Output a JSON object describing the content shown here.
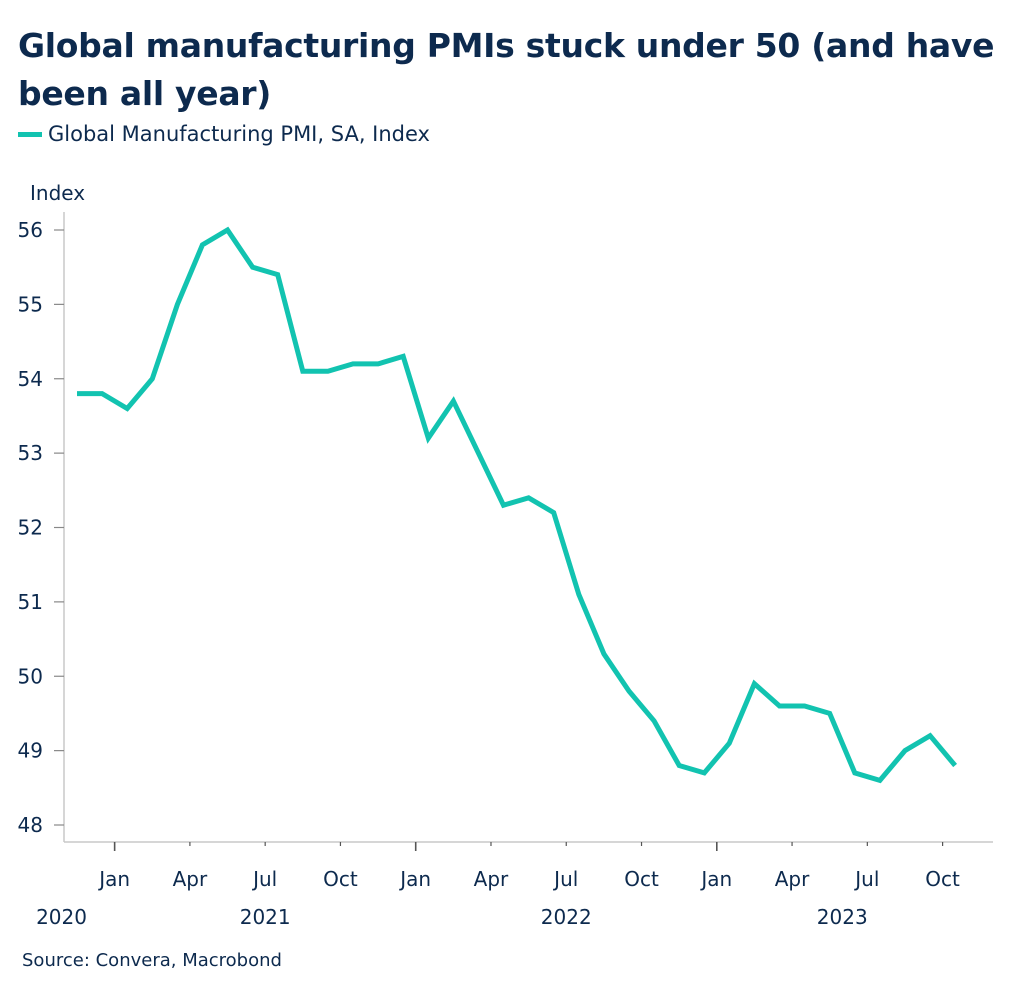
{
  "title": "Global manufacturing PMIs stuck under 50 (and have been all year)",
  "source": "Source: Convera, Macrobond",
  "colors": {
    "series": "#12c3b0",
    "text": "#0d2a4e",
    "axis": "#c8c8c8"
  },
  "chart_data": {
    "type": "line",
    "title": "Global manufacturing PMIs stuck under 50 (and have been all year)",
    "xlabel": "",
    "ylabel": "Index",
    "ylim": [
      48,
      56
    ],
    "yticks": [
      48,
      49,
      50,
      51,
      52,
      53,
      54,
      55,
      56
    ],
    "grid": false,
    "legend_position": "top-left",
    "x": [
      "2020-11",
      "2020-12",
      "2021-01",
      "2021-02",
      "2021-03",
      "2021-04",
      "2021-05",
      "2021-06",
      "2021-07",
      "2021-08",
      "2021-09",
      "2021-10",
      "2021-11",
      "2021-12",
      "2022-01",
      "2022-02",
      "2022-03",
      "2022-04",
      "2022-05",
      "2022-06",
      "2022-07",
      "2022-08",
      "2022-09",
      "2022-10",
      "2022-11",
      "2022-12",
      "2023-01",
      "2023-02",
      "2023-03",
      "2023-04",
      "2023-05",
      "2023-06",
      "2023-07",
      "2023-08",
      "2023-09",
      "2023-10"
    ],
    "series": [
      {
        "name": "Global Manufacturing PMI, SA, Index",
        "values": [
          53.8,
          53.8,
          53.6,
          54.0,
          55.0,
          55.8,
          56.0,
          55.5,
          55.4,
          54.1,
          54.1,
          54.2,
          54.2,
          54.3,
          53.2,
          53.7,
          53.0,
          52.3,
          52.4,
          52.2,
          51.1,
          50.3,
          49.8,
          49.4,
          48.8,
          48.7,
          49.1,
          49.9,
          49.6,
          49.6,
          49.5,
          48.7,
          48.6,
          49.0,
          49.2,
          48.8
        ]
      }
    ],
    "month_ticks": [
      {
        "label": "Jan",
        "date": "2021-01",
        "major": true
      },
      {
        "label": "Apr",
        "date": "2021-04",
        "major": false
      },
      {
        "label": "Jul",
        "date": "2021-07",
        "major": false
      },
      {
        "label": "Oct",
        "date": "2021-10",
        "major": false
      },
      {
        "label": "Jan",
        "date": "2022-01",
        "major": true
      },
      {
        "label": "Apr",
        "date": "2022-04",
        "major": false
      },
      {
        "label": "Jul",
        "date": "2022-07",
        "major": false
      },
      {
        "label": "Oct",
        "date": "2022-10",
        "major": false
      },
      {
        "label": "Jan",
        "date": "2023-01",
        "major": true
      },
      {
        "label": "Apr",
        "date": "2023-04",
        "major": false
      },
      {
        "label": "Jul",
        "date": "2023-07",
        "major": false
      },
      {
        "label": "Oct",
        "date": "2023-10",
        "major": false
      }
    ],
    "year_labels": [
      {
        "label": "2020",
        "center": "2020-12"
      },
      {
        "label": "2021",
        "center": "2021-07"
      },
      {
        "label": "2022",
        "center": "2022-07"
      },
      {
        "label": "2023",
        "center": "2023-06"
      }
    ]
  }
}
